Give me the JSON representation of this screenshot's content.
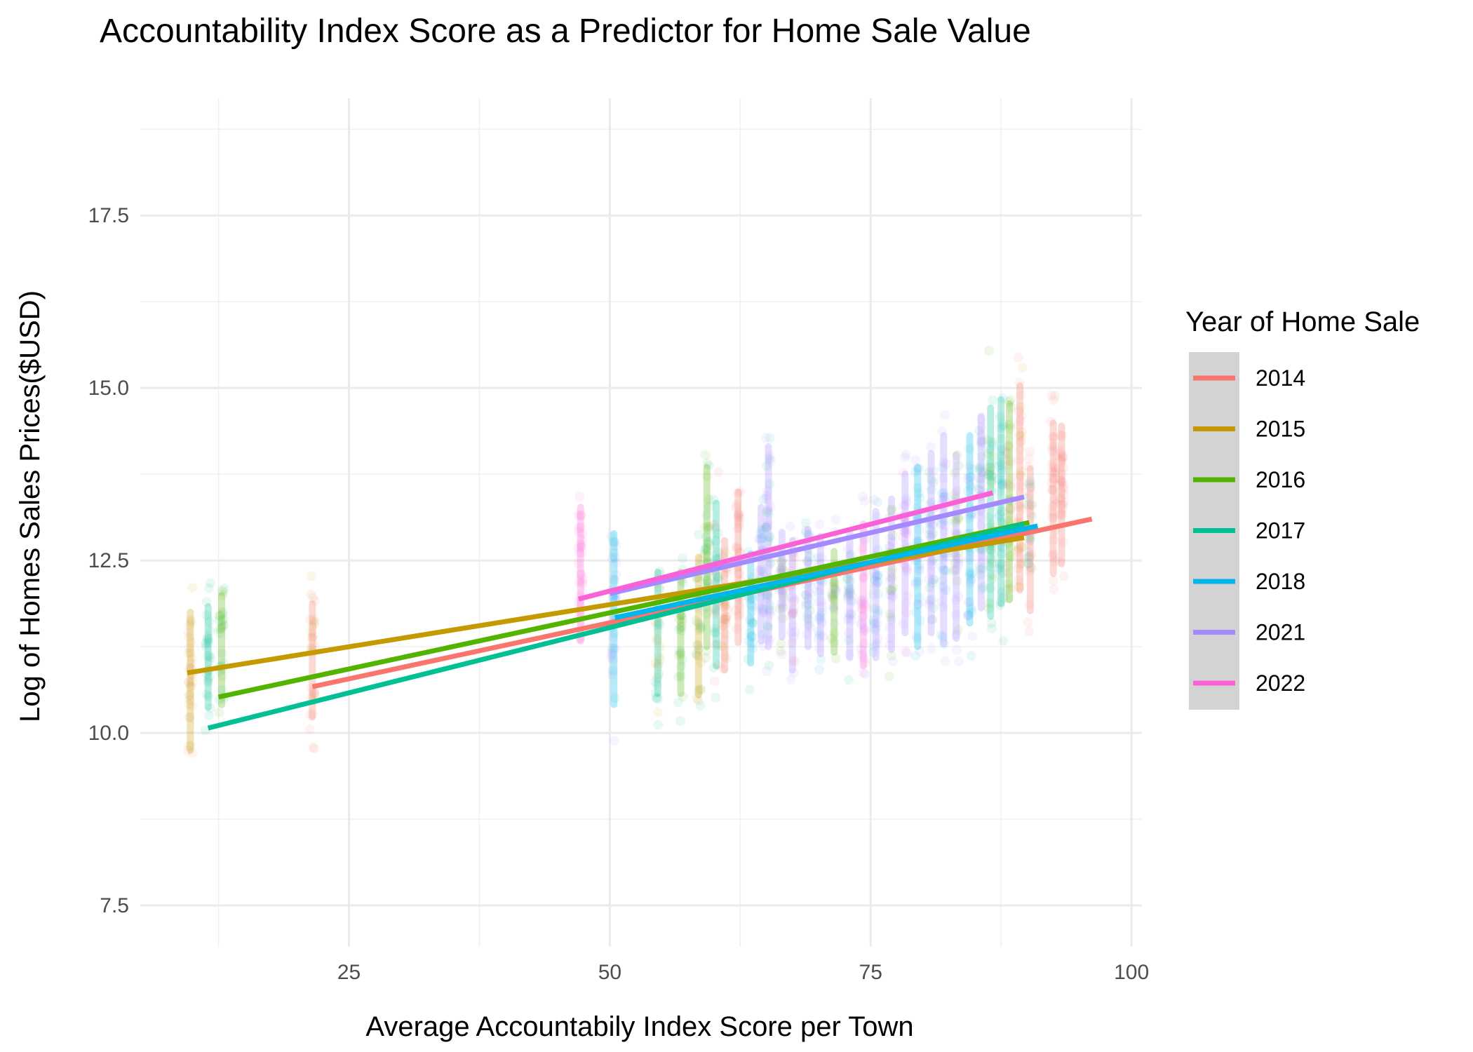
{
  "chart_data": {
    "type": "scatter",
    "title": "Accountability Index Score as a Predictor for Home Sale Value",
    "xlabel": "Average Accountabily Index Score per Town",
    "ylabel": "Log of Homes Sales Prices($USD)",
    "xlim": [
      5,
      101
    ],
    "ylim": [
      6.9,
      19.2
    ],
    "x_ticks": [
      25,
      50,
      75,
      100
    ],
    "x_tick_labels": [
      "25",
      "50",
      "75",
      "100"
    ],
    "y_ticks": [
      7.5,
      10.0,
      12.5,
      15.0,
      17.5
    ],
    "y_tick_labels": [
      "7.5",
      "10.0",
      "12.5",
      "15.0",
      "17.5"
    ],
    "grid": true,
    "legend": {
      "title": "Year of Home Sale",
      "position": "right"
    },
    "series": [
      {
        "name": "2014",
        "color": "#F8766D",
        "fit_line": {
          "x": [
            21.5,
            96.2
          ],
          "y": [
            10.67,
            13.1
          ]
        }
      },
      {
        "name": "2015",
        "color": "#C49A00",
        "fit_line": {
          "x": [
            9.5,
            89.7
          ],
          "y": [
            10.87,
            12.83
          ]
        }
      },
      {
        "name": "2016",
        "color": "#53B400",
        "fit_line": {
          "x": [
            12.5,
            90.2
          ],
          "y": [
            10.52,
            13.05
          ]
        }
      },
      {
        "name": "2017",
        "color": "#00C094",
        "fit_line": {
          "x": [
            11.5,
            89.7
          ],
          "y": [
            10.07,
            13.03
          ]
        }
      },
      {
        "name": "2018",
        "color": "#00B6EB",
        "fit_line": {
          "x": [
            50.5,
            91.0
          ],
          "y": [
            11.67,
            13.0
          ]
        }
      },
      {
        "name": "2021",
        "color": "#A58AFF",
        "fit_line": {
          "x": [
            50.0,
            89.7
          ],
          "y": [
            12.02,
            13.42
          ]
        }
      },
      {
        "name": "2022",
        "color": "#FB61D7",
        "fit_line": {
          "x": [
            47.0,
            86.7
          ],
          "y": [
            11.94,
            13.48
          ]
        }
      }
    ],
    "point_columns": [
      {
        "x": 9.8,
        "ylo": 9.0,
        "yhi": 12.5,
        "series": [
          "2015",
          "2014"
        ]
      },
      {
        "x": 11.5,
        "ylo": 9.8,
        "yhi": 12.4,
        "series": [
          "2017"
        ]
      },
      {
        "x": 12.8,
        "ylo": 9.8,
        "yhi": 12.6,
        "series": [
          "2016",
          "2017"
        ]
      },
      {
        "x": 21.5,
        "ylo": 9.6,
        "yhi": 12.5,
        "series": [
          "2014",
          "2015"
        ]
      },
      {
        "x": 47.2,
        "ylo": 10.6,
        "yhi": 14.0,
        "series": [
          "2022"
        ]
      },
      {
        "x": 50.4,
        "ylo": 9.5,
        "yhi": 13.8,
        "series": [
          "2018",
          "2021"
        ]
      },
      {
        "x": 54.6,
        "ylo": 9.9,
        "yhi": 13.0,
        "series": [
          "2017",
          "2015"
        ]
      },
      {
        "x": 56.8,
        "ylo": 9.9,
        "yhi": 13.0,
        "series": [
          "2016",
          "2017"
        ]
      },
      {
        "x": 58.5,
        "ylo": 9.8,
        "yhi": 13.3,
        "series": [
          "2015",
          "2016",
          "2017"
        ]
      },
      {
        "x": 59.3,
        "ylo": 10.3,
        "yhi": 14.8,
        "series": [
          "2016",
          "2017"
        ]
      },
      {
        "x": 60.2,
        "ylo": 10.1,
        "yhi": 14.2,
        "series": [
          "2017",
          "2014"
        ]
      },
      {
        "x": 61.0,
        "ylo": 10.2,
        "yhi": 13.5,
        "series": [
          "2014",
          "2015"
        ]
      },
      {
        "x": 62.3,
        "ylo": 10.5,
        "yhi": 14.3,
        "series": [
          "2014"
        ]
      },
      {
        "x": 63.5,
        "ylo": 10.4,
        "yhi": 13.2,
        "series": [
          "2018",
          "2017"
        ]
      },
      {
        "x": 64.5,
        "ylo": 10.6,
        "yhi": 14.0,
        "series": [
          "2021",
          "2018"
        ]
      },
      {
        "x": 65.2,
        "ylo": 10.2,
        "yhi": 15.2,
        "series": [
          "2021",
          "2017"
        ]
      },
      {
        "x": 66.5,
        "ylo": 10.8,
        "yhi": 13.5,
        "series": [
          "2021",
          "2016"
        ]
      },
      {
        "x": 67.5,
        "ylo": 10.2,
        "yhi": 13.5,
        "series": [
          "2021",
          "2014"
        ]
      },
      {
        "x": 69.0,
        "ylo": 10.6,
        "yhi": 13.6,
        "series": [
          "2021",
          "2017"
        ]
      },
      {
        "x": 70.2,
        "ylo": 10.5,
        "yhi": 13.5,
        "series": [
          "2021",
          "2018"
        ]
      },
      {
        "x": 71.5,
        "ylo": 10.6,
        "yhi": 13.2,
        "series": [
          "2016",
          "2021"
        ]
      },
      {
        "x": 73.0,
        "ylo": 10.4,
        "yhi": 13.6,
        "series": [
          "2021",
          "2017"
        ]
      },
      {
        "x": 74.3,
        "ylo": 10.2,
        "yhi": 13.8,
        "series": [
          "2022",
          "2021"
        ]
      },
      {
        "x": 75.5,
        "ylo": 10.3,
        "yhi": 14.0,
        "series": [
          "2021",
          "2018"
        ]
      },
      {
        "x": 77.0,
        "ylo": 10.4,
        "yhi": 14.2,
        "series": [
          "2021",
          "2016"
        ]
      },
      {
        "x": 78.3,
        "ylo": 10.6,
        "yhi": 14.6,
        "series": [
          "2021",
          "2022"
        ]
      },
      {
        "x": 79.5,
        "ylo": 10.3,
        "yhi": 14.8,
        "series": [
          "2018",
          "2021"
        ]
      },
      {
        "x": 80.8,
        "ylo": 10.5,
        "yhi": 15.0,
        "series": [
          "2021",
          "2017"
        ]
      },
      {
        "x": 82.0,
        "ylo": 10.2,
        "yhi": 15.4,
        "series": [
          "2021",
          "2018"
        ]
      },
      {
        "x": 83.2,
        "ylo": 10.4,
        "yhi": 15.0,
        "series": [
          "2021",
          "2016"
        ]
      },
      {
        "x": 84.5,
        "ylo": 10.6,
        "yhi": 15.3,
        "series": [
          "2018",
          "2021"
        ]
      },
      {
        "x": 85.6,
        "ylo": 10.8,
        "yhi": 15.6,
        "series": [
          "2021",
          "2017"
        ]
      },
      {
        "x": 86.5,
        "ylo": 10.6,
        "yhi": 15.8,
        "series": [
          "2017",
          "2016"
        ]
      },
      {
        "x": 87.5,
        "ylo": 10.8,
        "yhi": 15.9,
        "series": [
          "2017",
          "2018"
        ]
      },
      {
        "x": 88.3,
        "ylo": 10.9,
        "yhi": 15.8,
        "series": [
          "2016",
          "2014"
        ]
      },
      {
        "x": 89.3,
        "ylo": 11.0,
        "yhi": 16.1,
        "series": [
          "2014",
          "2015"
        ]
      },
      {
        "x": 90.3,
        "ylo": 11.0,
        "yhi": 14.6,
        "series": [
          "2014",
          "2017"
        ]
      },
      {
        "x": 92.5,
        "ylo": 11.5,
        "yhi": 15.3,
        "series": [
          "2014"
        ]
      },
      {
        "x": 93.3,
        "ylo": 11.7,
        "yhi": 15.2,
        "series": [
          "2014"
        ]
      }
    ]
  }
}
